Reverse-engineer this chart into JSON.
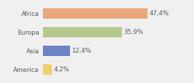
{
  "categories": [
    "Africa",
    "Europa",
    "Asia",
    "America"
  ],
  "values": [
    47.4,
    35.9,
    12.4,
    4.2
  ],
  "labels": [
    "47,4%",
    "35,9%",
    "12,4%",
    "4,2%"
  ],
  "bar_colors": [
    "#e8a87c",
    "#b5c98e",
    "#6b83c4",
    "#f0d06a"
  ],
  "background_color": "#f0f0f0",
  "xlim": [
    0,
    58
  ],
  "label_fontsize": 6.5,
  "category_fontsize": 6.5,
  "bar_height": 0.55
}
